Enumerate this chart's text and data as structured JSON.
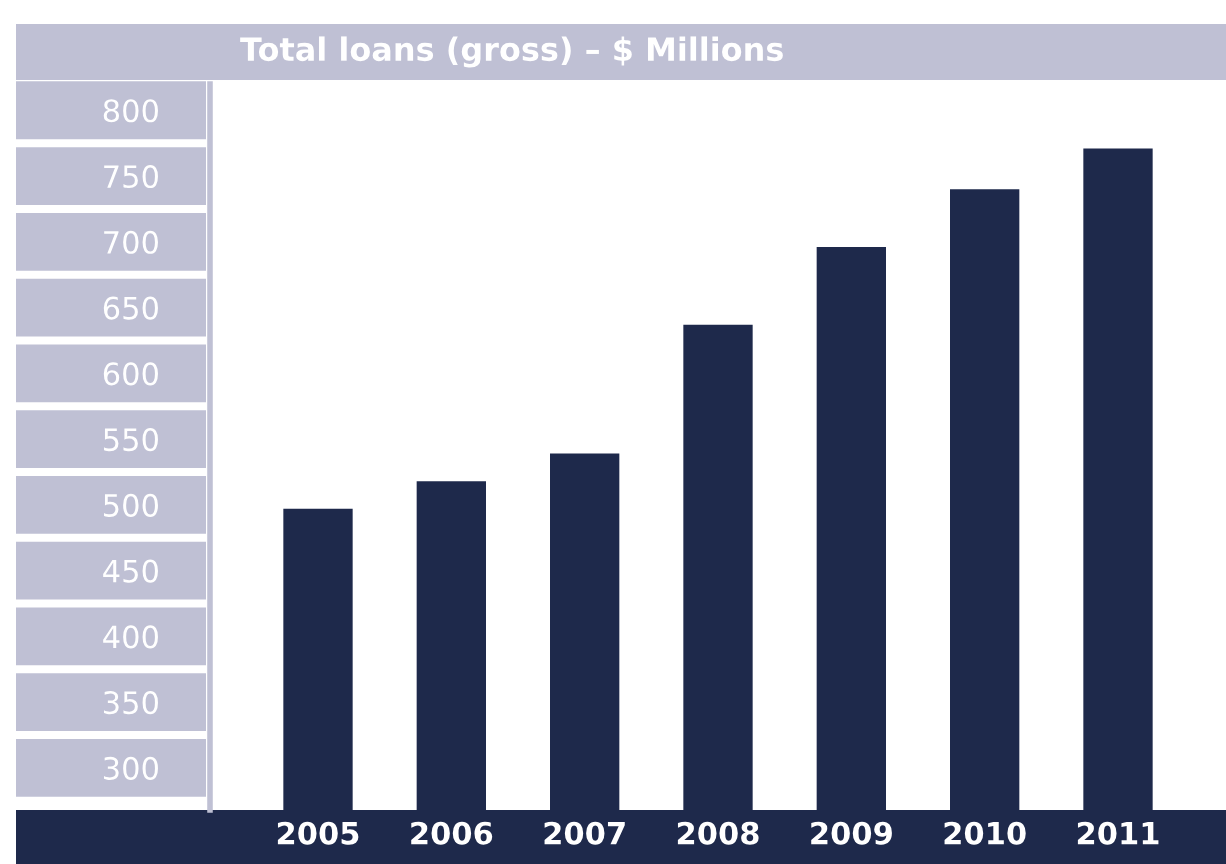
{
  "chart_data": {
    "type": "bar",
    "title": "Total loans (gross) – $ Millions",
    "categories": [
      "2005",
      "2006",
      "2007",
      "2008",
      "2009",
      "2010",
      "2011"
    ],
    "values": [
      497,
      518,
      539,
      637,
      696,
      740,
      771
    ],
    "color": "#1e294b",
    "ylim": [
      268,
      820
    ],
    "yticks": [
      300,
      350,
      400,
      450,
      500,
      550,
      600,
      650,
      700,
      750,
      800
    ],
    "grid": false,
    "legend": false
  }
}
